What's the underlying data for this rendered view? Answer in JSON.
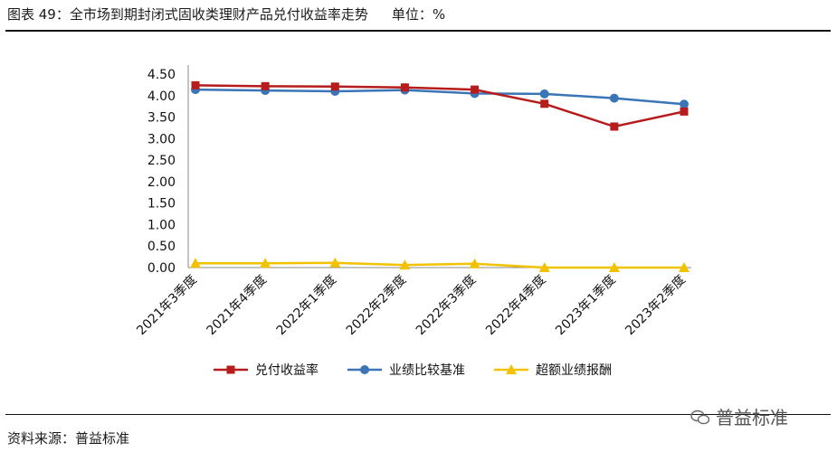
{
  "title": "图表  49：全市场到期封闭式固收类理财产品兑付收益率走势",
  "unit_label": "单位：%",
  "source": "资料来源：普益标准",
  "watermark": "普益标准",
  "chart_data": {
    "type": "line",
    "categories": [
      "2021年3季度",
      "2021年4季度",
      "2022年1季度",
      "2022年2季度",
      "2022年3季度",
      "2022年4季度",
      "2023年1季度",
      "2023年2季度"
    ],
    "ylim": [
      0,
      4.5
    ],
    "yticks": [
      "0.00",
      "0.50",
      "1.00",
      "1.50",
      "2.00",
      "2.50",
      "3.00",
      "3.50",
      "4.00",
      "4.50"
    ],
    "grid": false,
    "legend_position": "bottom",
    "series": [
      {
        "name": "兑付收益率",
        "color": "#b71c1c",
        "marker": "square",
        "values": [
          4.24,
          4.22,
          4.21,
          4.19,
          4.14,
          3.81,
          3.28,
          3.63
        ]
      },
      {
        "name": "业绩比较基准",
        "color": "#3a75b8",
        "marker": "circle",
        "values": [
          4.14,
          4.12,
          4.1,
          4.13,
          4.05,
          4.04,
          3.94,
          3.8
        ]
      },
      {
        "name": "超额业绩报酬",
        "color": "#f2c200",
        "marker": "triangle",
        "values": [
          0.1,
          0.1,
          0.11,
          0.06,
          0.09,
          0.0,
          0.0,
          0.0
        ]
      }
    ]
  }
}
